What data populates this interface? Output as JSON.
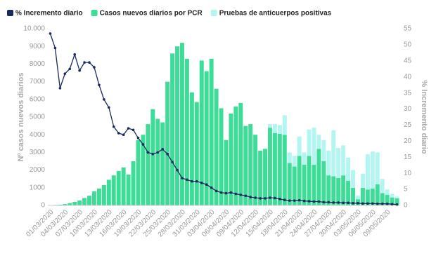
{
  "chart_data": {
    "type": "bar",
    "stacked": true,
    "y_label": "Nº casos nuevos diarios",
    "y2_label": "% Incremento diario",
    "categories": [
      "01/03/2020",
      null,
      null,
      "04/03/2020",
      null,
      null,
      "07/03/2020",
      null,
      null,
      "10/03/2020",
      null,
      null,
      "13/03/2020",
      null,
      null,
      "16/03/2020",
      null,
      null,
      "19/03/2020",
      null,
      null,
      "22/03/2020",
      null,
      null,
      "25/03/2020",
      null,
      null,
      "28/03/2020",
      null,
      null,
      "31/03/2020",
      null,
      null,
      "03/04/2020",
      null,
      null,
      "06/04/2020",
      null,
      null,
      "09/04/2020",
      null,
      null,
      "12/04/2020",
      null,
      null,
      "15/04/2020",
      null,
      null,
      "18/04/2020",
      null,
      null,
      "21/04/2020",
      null,
      null,
      "24/04/2020",
      null,
      null,
      "27/04/2020",
      null,
      null,
      "30/04/2020",
      null,
      null,
      "03/05/2020",
      null,
      null,
      "06/05/2020",
      null,
      null,
      "09/05/2020",
      null,
      null
    ],
    "series": [
      {
        "name": "% Incremento diario",
        "type": "line",
        "axis": "y2",
        "color": "#1b2a5e",
        "values": [
          53.5,
          49,
          36.5,
          41,
          42.5,
          47,
          42,
          44.5,
          44.5,
          43,
          37.5,
          33,
          30.5,
          24.5,
          22.5,
          22,
          24,
          23.5,
          21,
          19,
          16.5,
          16,
          16.5,
          17.5,
          16,
          13.5,
          11,
          8.5,
          8,
          7.5,
          7.5,
          7,
          6.5,
          5.5,
          4.5,
          4,
          3.8,
          4,
          3.6,
          3.3,
          3,
          2.6,
          2.4,
          2.2,
          2.2,
          2.4,
          2.3,
          2,
          1.7,
          1.5,
          1.5,
          1.6,
          1.4,
          1.3,
          1.2,
          1.2,
          1,
          1,
          0.9,
          0.9,
          0.8,
          0.8,
          0.7,
          0.7,
          0.6,
          0.6,
          0.6,
          0.5,
          0.5,
          0.5,
          0.4,
          0.3
        ]
      },
      {
        "name": "Casos nuevos diarios por PCR",
        "type": "bar",
        "color": "#3ddc97",
        "values": [
          20,
          30,
          40,
          80,
          130,
          200,
          280,
          420,
          550,
          800,
          950,
          1150,
          1450,
          1700,
          1950,
          2150,
          1750,
          2500,
          3700,
          4000,
          4600,
          5450,
          4900,
          4700,
          7000,
          8600,
          9000,
          9200,
          8300,
          6400,
          5850,
          8200,
          7600,
          8300,
          6600,
          5500,
          3700,
          5200,
          5600,
          5800,
          4500,
          4600,
          4000,
          3100,
          3200,
          4400,
          4100,
          4050,
          4000,
          2400,
          2200,
          2800,
          2300,
          2800,
          2300,
          3200,
          2500,
          1700,
          1650,
          1550,
          1700,
          1400,
          1000,
          350,
          1000,
          900,
          950,
          1200,
          700,
          600,
          450,
          400
        ]
      },
      {
        "name": "Pruebas de anticuerpos positivas",
        "type": "bar",
        "color": "#b3f5f0",
        "values": [
          0,
          0,
          0,
          0,
          0,
          0,
          0,
          0,
          0,
          0,
          0,
          0,
          0,
          0,
          0,
          0,
          0,
          0,
          0,
          0,
          0,
          0,
          0,
          0,
          0,
          0,
          0,
          0,
          0,
          0,
          0,
          0,
          0,
          0,
          0,
          0,
          0,
          0,
          0,
          0,
          0,
          0,
          0,
          0,
          0,
          200,
          500,
          500,
          1100,
          600,
          600,
          1100,
          700,
          1500,
          2100,
          800,
          1200,
          1400,
          2600,
          1700,
          1700,
          1300,
          1000,
          200,
          800,
          2000,
          2100,
          1800,
          800,
          300,
          200,
          100
        ]
      }
    ],
    "ylim": [
      0,
      10000
    ],
    "yticks": [
      0,
      1000,
      2000,
      3000,
      4000,
      5000,
      6000,
      7000,
      8000,
      9000,
      {
        "value": 10000,
        "label": "10.000"
      }
    ],
    "y2lim": [
      0,
      55
    ],
    "y2ticks": [
      0,
      5,
      10,
      15,
      20,
      25,
      30,
      35,
      40,
      45,
      50,
      55
    ]
  }
}
